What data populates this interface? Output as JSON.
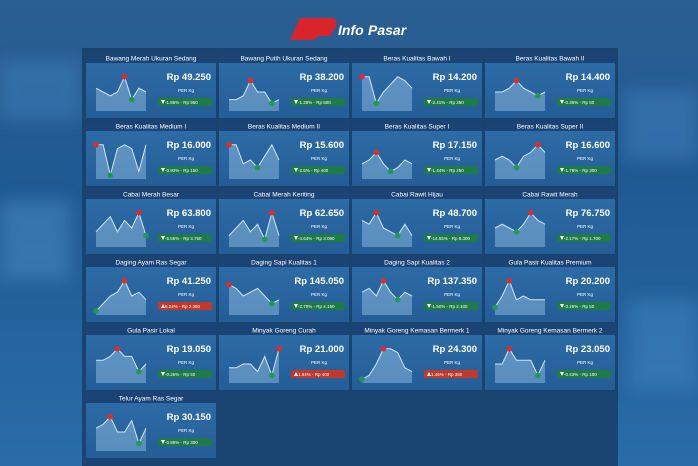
{
  "header": {
    "brand_left": "Info",
    "brand_right": "Pasar"
  },
  "unit": "PER Kg",
  "cards": [
    {
      "title": "Bawang Merah Ukuran Sedang",
      "price": "Rp 49.250",
      "change": "-1.85% - Rp 950",
      "direction": "down",
      "trend": [
        6,
        5,
        4,
        5,
        9,
        3,
        6,
        5
      ]
    },
    {
      "title": "Bawang Putih Ukuran Sedang",
      "price": "Rp 38.200",
      "change": "-1.29% - Rp 500",
      "direction": "down",
      "trend": [
        3,
        3,
        4,
        8,
        5,
        5,
        2,
        3
      ]
    },
    {
      "title": "Beras Kualitas Bawah I",
      "price": "Rp 14.200",
      "change": "-2.41% - Rp 350",
      "direction": "down",
      "trend": [
        9,
        9,
        2,
        5,
        7,
        9,
        8,
        6
      ]
    },
    {
      "title": "Beras Kualitas Bawah II",
      "price": "Rp 14.400",
      "change": "-0.35% - Rp 50",
      "direction": "down",
      "trend": [
        5,
        5,
        6,
        8,
        6,
        5,
        4,
        5
      ]
    },
    {
      "title": "Beras Kualitas Medium I",
      "price": "Rp 16.000",
      "change": "-0.93% - Rp 150",
      "direction": "down",
      "trend": [
        9,
        9,
        1,
        8,
        9,
        8,
        2,
        9
      ]
    },
    {
      "title": "Beras Kualitas Medium II",
      "price": "Rp 15.600",
      "change": "-2.5% - Rp 400",
      "direction": "down",
      "trend": [
        9,
        9,
        4,
        5,
        3,
        6,
        9,
        5
      ]
    },
    {
      "title": "Beras Kualitas Super I",
      "price": "Rp 17.150",
      "change": "-1.44% - Rp 250",
      "direction": "down",
      "trend": [
        4,
        5,
        7,
        4,
        2,
        3,
        5,
        4
      ]
    },
    {
      "title": "Beras Kualitas Super II",
      "price": "Rp 16.600",
      "change": "-1.78% - Rp 300",
      "direction": "down",
      "trend": [
        5,
        6,
        5,
        3,
        6,
        7,
        9,
        7
      ]
    },
    {
      "title": "Cabai Merah Besar",
      "price": "Rp 63.800",
      "change": "-5.55% - Rp 3.750",
      "direction": "down",
      "trend": [
        4,
        6,
        8,
        4,
        7,
        5,
        9,
        3
      ]
    },
    {
      "title": "Cabai Merah Keriting",
      "price": "Rp 62.650",
      "change": "-4.64% - Rp 3.050",
      "direction": "down",
      "trend": [
        3,
        5,
        7,
        4,
        6,
        2,
        9,
        3
      ]
    },
    {
      "title": "Cabai Rawit Hijau",
      "price": "Rp 48.700",
      "change": "-14.55% - Rp 8.300",
      "direction": "down",
      "trend": [
        7,
        6,
        9,
        5,
        4,
        3,
        6,
        3
      ]
    },
    {
      "title": "Cabai Rawit Merah",
      "price": "Rp 76.750",
      "change": "-2.17% - Rp 1.700",
      "direction": "down",
      "trend": [
        5,
        6,
        5,
        4,
        6,
        9,
        7,
        6
      ]
    },
    {
      "title": "Daging Ayam Ras Segar",
      "price": "Rp 41.250",
      "change": "6.04% - Rp 2.350",
      "direction": "up",
      "trend": [
        1,
        3,
        5,
        6,
        9,
        5,
        6,
        4
      ]
    },
    {
      "title": "Daging Sapi Kualitas 1",
      "price": "Rp 145.050",
      "change": "-2.70% - Rp 4.150",
      "direction": "down",
      "trend": [
        8,
        7,
        5,
        6,
        7,
        5,
        3,
        4
      ]
    },
    {
      "title": "Daging Sapi Kualitas 2",
      "price": "Rp 137.350",
      "change": "-1.50% - Rp 2.100",
      "direction": "down",
      "trend": [
        6,
        7,
        5,
        9,
        6,
        4,
        6,
        5
      ]
    },
    {
      "title": "Gula Pasir Kualitas Premium",
      "price": "Rp 20.200",
      "change": "-0.25% - Rp 50",
      "direction": "down",
      "trend": [
        2,
        5,
        9,
        4,
        5,
        4,
        4,
        4
      ]
    },
    {
      "title": "Gula Pasir Lokal",
      "price": "Rp 19.050",
      "change": "-0.26% - Rp 50",
      "direction": "down",
      "trend": [
        6,
        6,
        7,
        9,
        7,
        7,
        3,
        5
      ]
    },
    {
      "title": "Minyak Goreng Curah",
      "price": "Rp 21.000",
      "change": "1.94% - Rp 400",
      "direction": "up",
      "trend": [
        4,
        4,
        5,
        5,
        3,
        7,
        2,
        9
      ]
    },
    {
      "title": "Minyak Goreng Kemasan Bermerk 1",
      "price": "Rp 24.300",
      "change": "1.46% - Rp 350",
      "direction": "up",
      "trend": [
        1,
        2,
        5,
        9,
        9,
        8,
        4,
        3
      ]
    },
    {
      "title": "Minyak Goreng Kemasan Bermerk 2",
      "price": "Rp 23.050",
      "change": "-0.43% - Rp 100",
      "direction": "down",
      "trend": [
        5,
        5,
        9,
        6,
        6,
        6,
        2,
        6
      ]
    },
    {
      "title": "Telur Ayam Ras Segar",
      "price": "Rp 30.150",
      "change": "-0.99% - Rp 300",
      "direction": "down",
      "trend": [
        6,
        7,
        9,
        5,
        5,
        8,
        2,
        6
      ]
    }
  ]
}
